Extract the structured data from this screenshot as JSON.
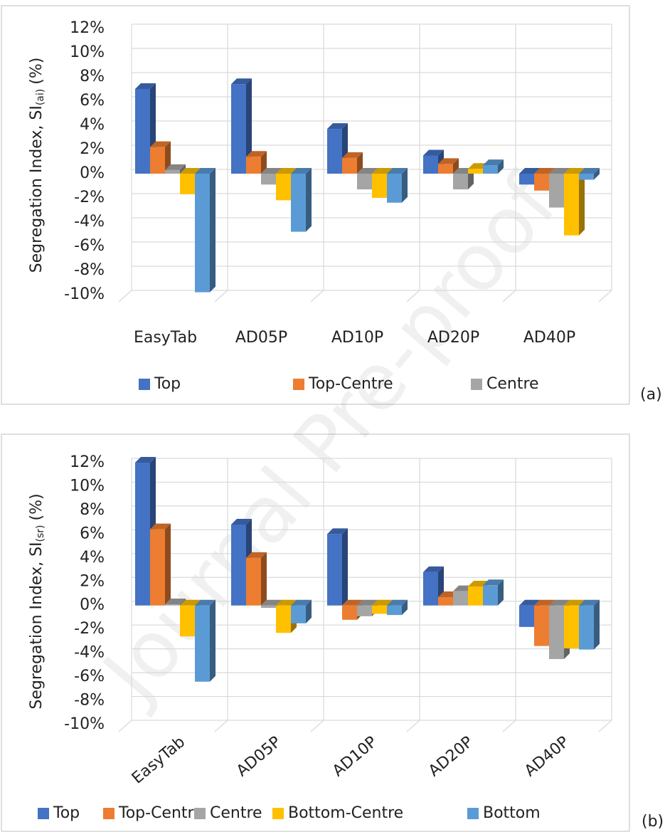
{
  "watermark": "Journal Pre-proof",
  "chart_data": [
    {
      "type": "bar3d",
      "panel_label": "(a)",
      "y_label": "Segregation Index, SI",
      "y_label_sub": "(ai)",
      "y_label_unit": "(%)",
      "categories": [
        "EasyTab",
        "AD05P",
        "AD10P",
        "AD20P",
        "AD40P"
      ],
      "series": [
        {
          "name": "Top",
          "color": "#4472c4",
          "values": [
            7.0,
            7.4,
            3.7,
            1.5,
            -0.9
          ]
        },
        {
          "name": "Top-Centre",
          "color": "#ed7d31",
          "values": [
            2.2,
            1.4,
            1.3,
            0.8,
            -1.4
          ]
        },
        {
          "name": "Centre",
          "color": "#a5a5a5",
          "values": [
            0.3,
            -0.9,
            -1.3,
            -1.3,
            -2.8
          ]
        },
        {
          "color": "#ffc000",
          "values": [
            -1.7,
            -2.2,
            -2.0,
            0.4,
            -5.1
          ]
        },
        {
          "color": "#5b9bd5",
          "values": [
            -9.8,
            -4.8,
            -2.4,
            0.7,
            -0.5
          ]
        }
      ],
      "ylim": [
        -10,
        12
      ],
      "yticks": [
        {
          "value": -10,
          "label": "-10%"
        },
        {
          "value": -8,
          "label": "-8%"
        },
        {
          "value": -6,
          "label": "-6%"
        },
        {
          "value": -4,
          "label": "-4%"
        },
        {
          "value": -2,
          "label": "-2%"
        },
        {
          "value": 0,
          "label": "0%"
        },
        {
          "value": 2,
          "label": "2%"
        },
        {
          "value": 4,
          "label": "4%"
        },
        {
          "value": 6,
          "label": "6%"
        },
        {
          "value": 8,
          "label": "8%"
        },
        {
          "value": 10,
          "label": "10%"
        },
        {
          "value": 12,
          "label": "12%"
        }
      ],
      "grid": true,
      "legend_position": "bottom"
    },
    {
      "type": "bar3d",
      "panel_label": "(b)",
      "y_label": "Segregation Index, SI",
      "y_label_sub": "(sr)",
      "y_label_unit": "(%)",
      "categories": [
        "EasyTab",
        "AD05P",
        "AD10P",
        "AD20P",
        "AD40P"
      ],
      "series": [
        {
          "name": "Top",
          "color": "#4472c4",
          "values": [
            12.0,
            6.8,
            6.0,
            2.8,
            -1.8
          ]
        },
        {
          "name": "Top-Centre",
          "color": "#ed7d31",
          "values": [
            6.4,
            4.0,
            -1.2,
            0.7,
            -3.4
          ]
        },
        {
          "name": "Centre",
          "color": "#a5a5a5",
          "values": [
            0.1,
            -0.2,
            -0.9,
            1.2,
            -4.5
          ]
        },
        {
          "name": "Bottom-Centre",
          "color": "#ffc000",
          "values": [
            -2.6,
            -2.3,
            -0.7,
            1.6,
            -3.6
          ]
        },
        {
          "name": "Bottom",
          "color": "#5b9bd5",
          "values": [
            -6.4,
            -1.5,
            -0.8,
            1.7,
            -3.7
          ]
        }
      ],
      "ylim": [
        -10,
        12
      ],
      "yticks": [
        {
          "value": -10,
          "label": "-10%"
        },
        {
          "value": -8,
          "label": "-8%"
        },
        {
          "value": -6,
          "label": "-6%"
        },
        {
          "value": -4,
          "label": "-4%"
        },
        {
          "value": -2,
          "label": "-2%"
        },
        {
          "value": 0,
          "label": "0%"
        },
        {
          "value": 2,
          "label": "2%"
        },
        {
          "value": 4,
          "label": "4%"
        },
        {
          "value": 6,
          "label": "6%"
        },
        {
          "value": 8,
          "label": "8%"
        },
        {
          "value": 10,
          "label": "10%"
        },
        {
          "value": 12,
          "label": "12%"
        }
      ],
      "grid": true,
      "legend_position": "bottom",
      "rotate_x_labels": true
    }
  ]
}
